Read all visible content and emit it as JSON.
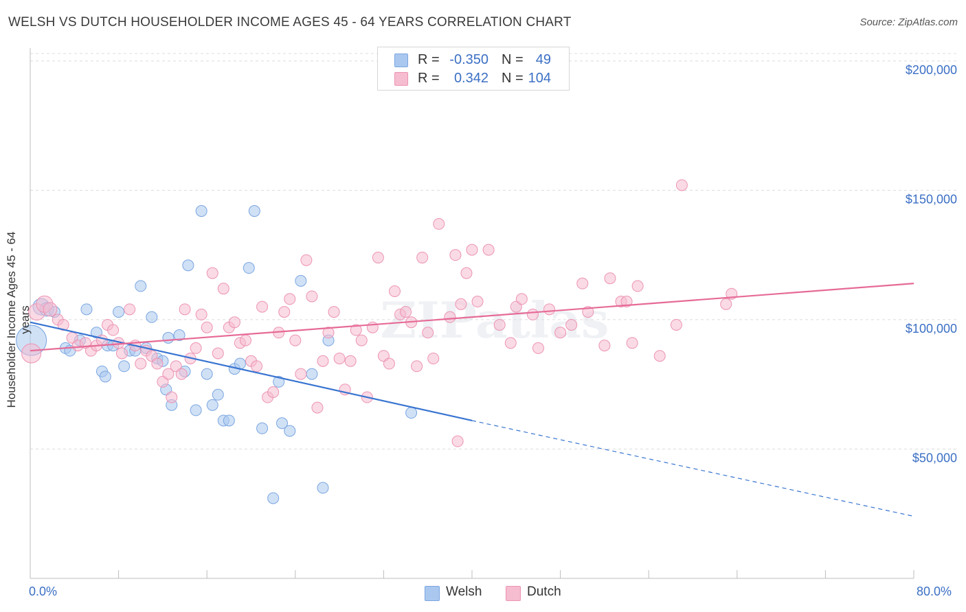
{
  "title": "WELSH VS DUTCH HOUSEHOLDER INCOME AGES 45 - 64 YEARS CORRELATION CHART",
  "source": "Source: ZipAtlas.com",
  "watermark": "ZIPatlas",
  "legend": {
    "rows": [
      {
        "r_label": "R =",
        "r_value": "-0.350",
        "n_label": "N =",
        "n_value": "49",
        "color": "#aac8ef",
        "border": "#7aa5e0"
      },
      {
        "r_label": "R =",
        "r_value": "0.342",
        "n_label": "N =",
        "n_value": "104",
        "color": "#f6bcd0",
        "border": "#ec93b3"
      }
    ]
  },
  "bottom_legend": {
    "welsh": "Welsh",
    "dutch": "Dutch"
  },
  "x_axis_labels": {
    "min": "0.0%",
    "max": "80.0%"
  },
  "chart_data": {
    "type": "scatter",
    "title": "WELSH VS DUTCH HOUSEHOLDER INCOME AGES 45 - 64 YEARS CORRELATION CHART",
    "xlabel": "",
    "ylabel": "Householder Income Ages 45 - 64 years",
    "xlim": [
      0,
      80
    ],
    "ylim": [
      0,
      205000
    ],
    "grid": true,
    "y_ticks": [
      {
        "value": 50000,
        "label": "$50,000"
      },
      {
        "value": 100000,
        "label": "$100,000"
      },
      {
        "value": 150000,
        "label": "$150,000"
      },
      {
        "value": 200000,
        "label": "$200,000"
      }
    ],
    "legend_placement": "top-center",
    "series": [
      {
        "name": "Welsh",
        "color": "#7aa5e0",
        "fill": "rgba(170,200,239,0.55)",
        "trend": {
          "x0": 0,
          "y0": 99000,
          "x1": 40,
          "y1": 61000,
          "dash_to_x": 80,
          "dash_to_y": 24000,
          "color": "#3874d1"
        },
        "points": [
          [
            0.1,
            92000,
            22
          ],
          [
            1.0,
            105000,
            12
          ],
          [
            1.5,
            104000,
            10
          ],
          [
            2.2,
            103000,
            8
          ],
          [
            3.2,
            89000,
            8
          ],
          [
            3.6,
            88000,
            8
          ],
          [
            5.1,
            104000,
            8
          ],
          [
            4.5,
            92000,
            8
          ],
          [
            6.0,
            95000,
            8
          ],
          [
            6.5,
            80000,
            8
          ],
          [
            7.0,
            90000,
            8
          ],
          [
            7.5,
            90000,
            8
          ],
          [
            8.0,
            103000,
            8
          ],
          [
            8.5,
            82000,
            8
          ],
          [
            9.0,
            88000,
            8
          ],
          [
            9.5,
            88000,
            8
          ],
          [
            10.0,
            113000,
            8
          ],
          [
            10.5,
            89000,
            8
          ],
          [
            11.0,
            101000,
            8
          ],
          [
            11.5,
            85000,
            8
          ],
          [
            12.0,
            84000,
            8
          ],
          [
            12.3,
            73000,
            8
          ],
          [
            12.5,
            93000,
            8
          ],
          [
            12.8,
            67000,
            8
          ],
          [
            13.5,
            94000,
            8
          ],
          [
            14.0,
            80000,
            8
          ],
          [
            14.3,
            121000,
            8
          ],
          [
            15.0,
            65000,
            8
          ],
          [
            15.5,
            142000,
            8
          ],
          [
            16.0,
            79000,
            8
          ],
          [
            16.5,
            67000,
            8
          ],
          [
            17.0,
            71000,
            8
          ],
          [
            17.5,
            61000,
            8
          ],
          [
            18.0,
            61000,
            8
          ],
          [
            18.5,
            81000,
            8
          ],
          [
            19.0,
            83000,
            8
          ],
          [
            19.8,
            120000,
            8
          ],
          [
            20.3,
            142000,
            8
          ],
          [
            21.0,
            58000,
            8
          ],
          [
            22.0,
            31000,
            8
          ],
          [
            22.5,
            76000,
            8
          ],
          [
            22.8,
            60000,
            8
          ],
          [
            23.5,
            57000,
            8
          ],
          [
            24.5,
            115000,
            8
          ],
          [
            25.5,
            79000,
            8
          ],
          [
            26.5,
            35000,
            8
          ],
          [
            27.0,
            92000,
            8
          ],
          [
            34.5,
            64000,
            8
          ],
          [
            6.8,
            78000,
            8
          ]
        ]
      },
      {
        "name": "Dutch",
        "color": "#ec93b3",
        "fill": "rgba(246,188,208,0.55)",
        "trend": {
          "x0": 0,
          "y0": 88000,
          "x1": 80,
          "y1": 114000,
          "color": "#e66a96"
        },
        "points": [
          [
            0.1,
            87000,
            14
          ],
          [
            0.6,
            103000,
            12
          ],
          [
            1.3,
            106000,
            12
          ],
          [
            1.8,
            104000,
            10
          ],
          [
            2.5,
            100000,
            8
          ],
          [
            3.0,
            98000,
            8
          ],
          [
            3.8,
            93000,
            8
          ],
          [
            4.3,
            90000,
            8
          ],
          [
            5.0,
            91000,
            8
          ],
          [
            5.5,
            88000,
            8
          ],
          [
            6.0,
            90000,
            8
          ],
          [
            6.5,
            92000,
            8
          ],
          [
            7.0,
            98000,
            8
          ],
          [
            7.5,
            96000,
            8
          ],
          [
            8.0,
            91000,
            8
          ],
          [
            8.3,
            87000,
            8
          ],
          [
            9.0,
            104000,
            8
          ],
          [
            9.5,
            90000,
            8
          ],
          [
            10.0,
            83000,
            8
          ],
          [
            10.5,
            88000,
            8
          ],
          [
            11.0,
            86000,
            8
          ],
          [
            11.5,
            83000,
            8
          ],
          [
            12.0,
            76000,
            8
          ],
          [
            12.5,
            79000,
            8
          ],
          [
            12.8,
            70000,
            8
          ],
          [
            13.2,
            82000,
            8
          ],
          [
            13.7,
            79000,
            8
          ],
          [
            14.0,
            104000,
            8
          ],
          [
            14.5,
            85000,
            8
          ],
          [
            15.0,
            89000,
            8
          ],
          [
            15.5,
            102000,
            8
          ],
          [
            16.0,
            97000,
            8
          ],
          [
            16.5,
            118000,
            8
          ],
          [
            17.0,
            87000,
            8
          ],
          [
            17.5,
            112000,
            8
          ],
          [
            18.0,
            97000,
            8
          ],
          [
            18.5,
            99000,
            8
          ],
          [
            19.0,
            91000,
            8
          ],
          [
            19.5,
            92000,
            8
          ],
          [
            20.0,
            84000,
            8
          ],
          [
            20.5,
            82000,
            8
          ],
          [
            21.0,
            105000,
            8
          ],
          [
            21.5,
            70000,
            8
          ],
          [
            22.0,
            72000,
            8
          ],
          [
            22.5,
            95000,
            8
          ],
          [
            23.0,
            103000,
            8
          ],
          [
            23.5,
            108000,
            8
          ],
          [
            24.0,
            92000,
            8
          ],
          [
            24.5,
            79000,
            8
          ],
          [
            25.0,
            123000,
            8
          ],
          [
            25.5,
            109000,
            8
          ],
          [
            26.0,
            66000,
            8
          ],
          [
            26.5,
            84000,
            8
          ],
          [
            27.0,
            95000,
            8
          ],
          [
            27.5,
            103000,
            8
          ],
          [
            28.0,
            85000,
            8
          ],
          [
            28.5,
            73000,
            8
          ],
          [
            29.0,
            84000,
            8
          ],
          [
            29.5,
            96000,
            8
          ],
          [
            30.0,
            92000,
            8
          ],
          [
            30.5,
            70000,
            8
          ],
          [
            31.0,
            97000,
            8
          ],
          [
            31.5,
            124000,
            8
          ],
          [
            32.0,
            86000,
            8
          ],
          [
            32.5,
            83000,
            8
          ],
          [
            33.0,
            111000,
            8
          ],
          [
            33.5,
            102000,
            8
          ],
          [
            34.0,
            103000,
            8
          ],
          [
            34.5,
            99000,
            8
          ],
          [
            35.0,
            82000,
            8
          ],
          [
            35.5,
            124000,
            8
          ],
          [
            36.0,
            95000,
            8
          ],
          [
            36.5,
            85000,
            8
          ],
          [
            37.0,
            137000,
            8
          ],
          [
            38.0,
            101000,
            8
          ],
          [
            38.5,
            125000,
            8
          ],
          [
            39.0,
            106000,
            8
          ],
          [
            39.5,
            118000,
            8
          ],
          [
            40.0,
            127000,
            8
          ],
          [
            40.5,
            107000,
            8
          ],
          [
            41.5,
            127000,
            8
          ],
          [
            42.5,
            98000,
            8
          ],
          [
            43.5,
            91000,
            8
          ],
          [
            44.0,
            105000,
            8
          ],
          [
            44.5,
            108000,
            8
          ],
          [
            45.5,
            102000,
            8
          ],
          [
            46.0,
            89000,
            8
          ],
          [
            47.0,
            104000,
            8
          ],
          [
            48.0,
            95000,
            8
          ],
          [
            49.0,
            98000,
            8
          ],
          [
            50.0,
            114000,
            8
          ],
          [
            50.5,
            103000,
            8
          ],
          [
            52.0,
            90000,
            8
          ],
          [
            52.5,
            116000,
            8
          ],
          [
            53.5,
            107000,
            8
          ],
          [
            54.0,
            107000,
            8
          ],
          [
            54.5,
            91000,
            8
          ],
          [
            55.0,
            113000,
            8
          ],
          [
            57.0,
            86000,
            8
          ],
          [
            58.5,
            98000,
            8
          ],
          [
            59.0,
            152000,
            8
          ],
          [
            63.0,
            106000,
            8
          ],
          [
            63.5,
            110000,
            8
          ],
          [
            38.7,
            53000,
            8
          ]
        ]
      }
    ]
  }
}
